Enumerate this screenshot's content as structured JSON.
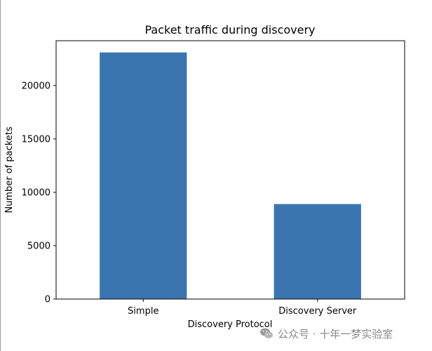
{
  "chart_data": {
    "type": "bar",
    "title": "Packet traffic during discovery",
    "xlabel": "Discovery Protocol",
    "ylabel": "Number of packets",
    "categories": [
      "Simple",
      "Discovery Server"
    ],
    "values": [
      23100,
      8900
    ],
    "ylim": [
      0,
      24200
    ],
    "yticks": [
      0,
      5000,
      10000,
      15000,
      20000
    ],
    "bar_color": "#3a75b0",
    "grid": false,
    "legend": "none"
  },
  "watermark": {
    "text": "公众号 · 十年一梦实验室",
    "icon": "wechat-icon"
  }
}
